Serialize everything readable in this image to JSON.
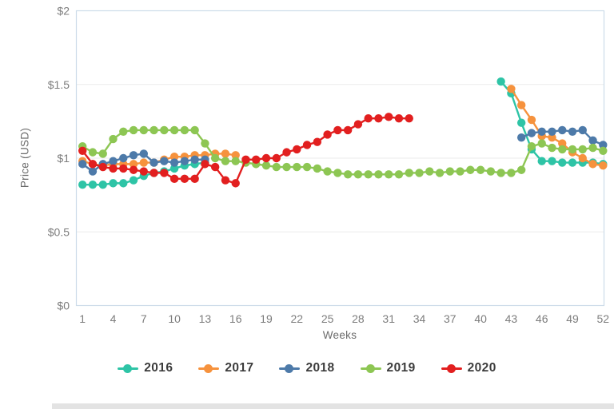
{
  "chart_data": {
    "type": "line",
    "title": "",
    "xlabel": "Weeks",
    "ylabel": "Price (USD)",
    "x_ticks": [
      1,
      4,
      7,
      10,
      13,
      16,
      19,
      22,
      25,
      28,
      31,
      34,
      37,
      40,
      43,
      46,
      49,
      52
    ],
    "y_ticks": [
      {
        "value": 0,
        "label": "$0"
      },
      {
        "value": 0.5,
        "label": "$0.5"
      },
      {
        "value": 1,
        "label": "$1"
      },
      {
        "value": 1.5,
        "label": "$1.5"
      },
      {
        "value": 2,
        "label": "$2"
      }
    ],
    "xlim": [
      1,
      52
    ],
    "ylim": [
      0,
      2
    ],
    "grid": true,
    "legend_position": "bottom",
    "series": [
      {
        "name": "2016",
        "color": "#2ec4a6",
        "segments": [
          {
            "start_week": 1,
            "values": [
              0.82,
              0.82,
              0.82,
              0.83,
              0.83,
              0.85,
              0.88,
              0.9,
              0.91,
              0.93,
              0.95,
              0.96,
              0.97
            ]
          },
          {
            "start_week": 42,
            "values": [
              1.52,
              1.44,
              1.24,
              1.06,
              0.98,
              0.98,
              0.97,
              0.97,
              0.97,
              0.97,
              0.96
            ]
          }
        ]
      },
      {
        "name": "2017",
        "color": "#f6923d",
        "segments": [
          {
            "start_week": 1,
            "values": [
              0.98,
              0.96,
              0.95,
              0.96,
              0.96,
              0.96,
              0.97,
              0.97,
              0.99,
              1.01,
              1.01,
              1.02,
              1.02,
              1.03,
              1.03,
              1.02
            ]
          },
          {
            "start_week": 43,
            "values": [
              1.47,
              1.36,
              1.26,
              1.15,
              1.14,
              1.1,
              1.04,
              1.0,
              0.96,
              0.95
            ]
          }
        ]
      },
      {
        "name": "2018",
        "color": "#4d7aa9",
        "segments": [
          {
            "start_week": 1,
            "values": [
              0.96,
              0.91,
              0.96,
              0.98,
              1.0,
              1.02,
              1.03,
              0.97,
              0.98,
              0.97,
              0.98,
              0.99,
              0.99
            ]
          },
          {
            "start_week": 44,
            "values": [
              1.14,
              1.17,
              1.18,
              1.18,
              1.19,
              1.18,
              1.19,
              1.12,
              1.09
            ]
          }
        ]
      },
      {
        "name": "2019",
        "color": "#8dc653",
        "segments": [
          {
            "start_week": 1,
            "values": [
              1.08,
              1.04,
              1.03,
              1.13,
              1.18,
              1.19,
              1.19,
              1.19,
              1.19,
              1.19,
              1.19,
              1.19,
              1.1,
              1.0,
              0.98,
              0.98,
              0.97,
              0.96,
              0.95,
              0.94,
              0.94,
              0.94,
              0.94,
              0.93,
              0.91,
              0.9,
              0.89,
              0.89,
              0.89,
              0.89,
              0.89,
              0.89,
              0.9,
              0.9,
              0.91,
              0.9,
              0.91,
              0.91,
              0.92,
              0.92,
              0.91,
              0.9,
              0.9,
              0.92,
              1.08,
              1.1,
              1.07,
              1.06,
              1.06,
              1.06,
              1.07,
              1.05
            ]
          }
        ]
      },
      {
        "name": "2020",
        "color": "#e21f1f",
        "segments": [
          {
            "start_week": 1,
            "values": [
              1.05,
              0.96,
              0.94,
              0.93,
              0.93,
              0.92,
              0.91,
              0.9,
              0.9,
              0.86,
              0.86,
              0.86,
              0.96,
              0.94,
              0.85,
              0.83,
              0.99,
              0.99,
              1.0,
              1.0,
              1.04,
              1.06,
              1.09,
              1.11,
              1.16,
              1.19,
              1.19,
              1.23,
              1.27,
              1.27,
              1.28,
              1.27,
              1.27
            ]
          }
        ]
      }
    ],
    "colors": {
      "plot_border": "#ccdbe9",
      "gridline": "#ebebeb",
      "tick_label": "#7d7d7d"
    }
  }
}
